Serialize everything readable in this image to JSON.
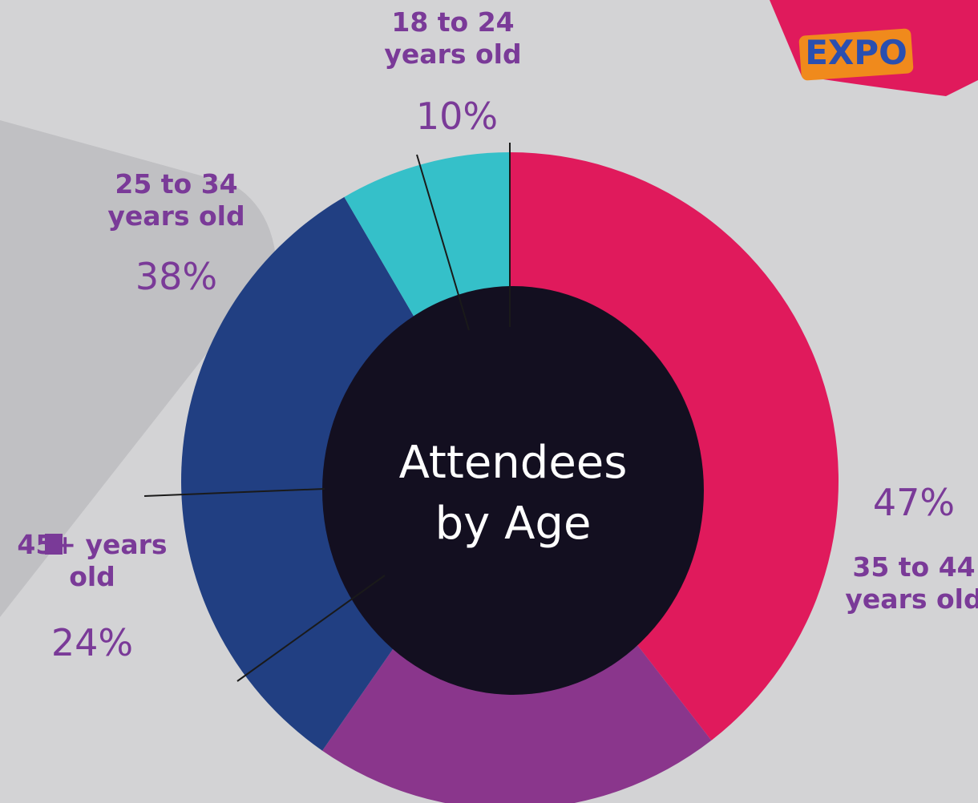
{
  "chart_data": {
    "type": "donut",
    "title": "Attendees by Age",
    "categories": [
      "35 to 44 years old",
      "45+ years old",
      "25 to 34 years old",
      "18 to 24 years old"
    ],
    "values": [
      47,
      24,
      38,
      10
    ],
    "value_labels": [
      "47%",
      "24%",
      "38%",
      "10%"
    ],
    "colors": [
      "#e01a5c",
      "#8a368c",
      "#213f82",
      "#35c0c9"
    ],
    "logo_text": "EXPO"
  }
}
